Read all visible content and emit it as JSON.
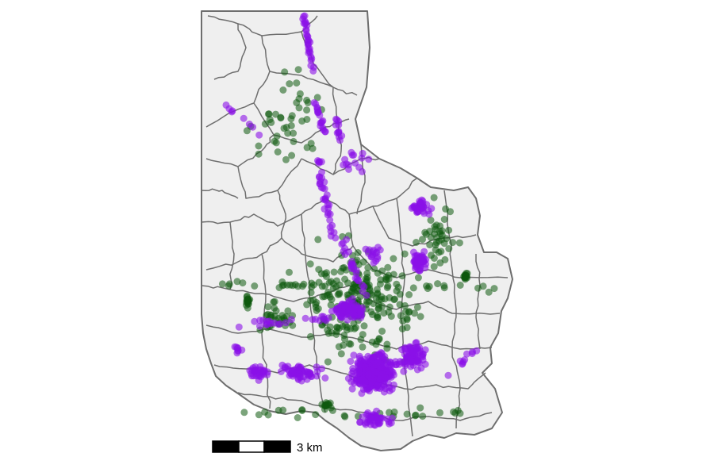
{
  "map": {
    "land_color": "#efefef",
    "boundary_color": "#6e6e6e",
    "background_color": "#ffffff",
    "series": [
      {
        "key": "green",
        "color": "#0f5a0f",
        "opacity": 0.55
      },
      {
        "key": "purple",
        "color": "#8a10e8",
        "opacity": 0.6
      }
    ]
  },
  "scale_bar": {
    "label": "3 km",
    "segments": 3,
    "colors": [
      "#000000",
      "#ffffff",
      "#000000"
    ]
  }
}
